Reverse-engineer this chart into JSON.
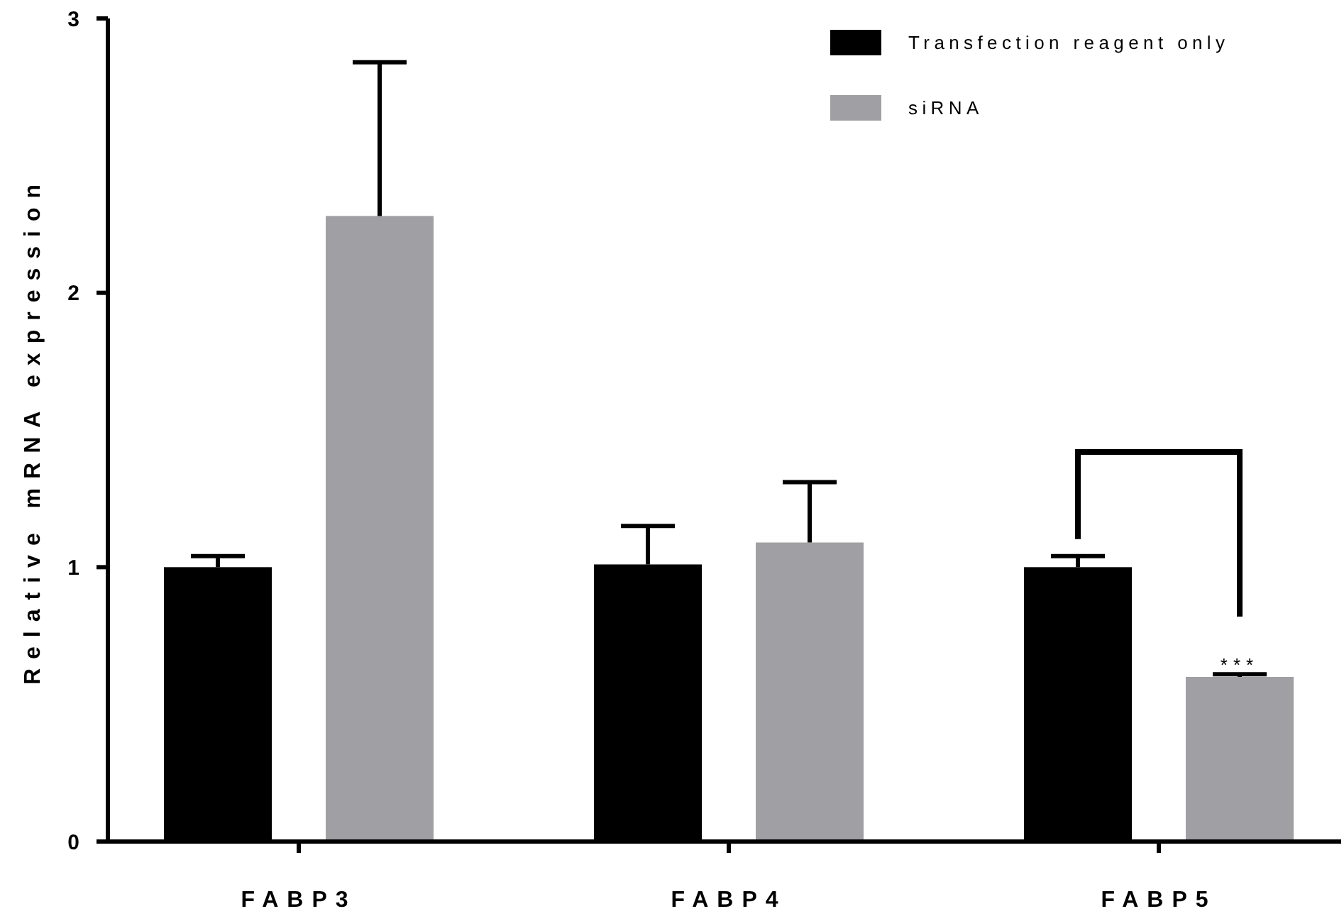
{
  "chart_data": {
    "type": "bar",
    "ylabel": "Relative mRNA expression",
    "categories": [
      "FABP3",
      "FABP4",
      "FABP5"
    ],
    "series": [
      {
        "name": "Transfection reagent only",
        "color": "#000000",
        "values": [
          1.0,
          1.01,
          1.0
        ],
        "errors": [
          0.04,
          0.14,
          0.04
        ]
      },
      {
        "name": "siRNA",
        "color": "#a0a0a4",
        "values": [
          2.28,
          1.09,
          0.6
        ],
        "errors": [
          0.56,
          0.22,
          0.01
        ]
      }
    ],
    "ylim": [
      0,
      3
    ],
    "yticks": [
      0,
      1,
      2,
      3
    ],
    "grid": false,
    "legend": "top right",
    "annotations": [
      "***"
    ]
  }
}
